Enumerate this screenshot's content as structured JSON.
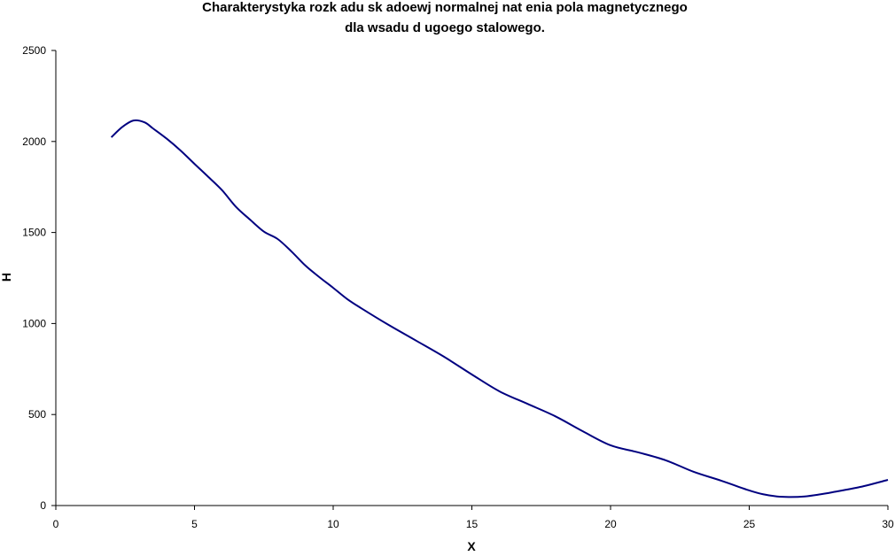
{
  "chart_data": {
    "type": "line",
    "title": [
      "Charakterystyka rozk adu sk adoewj normalnej nat    enia pola magnetycznego",
      "dla wsadu d ugoego stalowego."
    ],
    "xlabel": "X",
    "ylabel": "H",
    "xlim": [
      0,
      30
    ],
    "ylim": [
      0,
      2500
    ],
    "xticks": [
      0,
      5,
      10,
      15,
      20,
      25,
      30
    ],
    "yticks": [
      0,
      500,
      1000,
      1500,
      2000,
      2500
    ],
    "grid": false,
    "legend": "none",
    "series": [
      {
        "name": "H",
        "color": "#000080",
        "x": [
          2,
          2.4,
          2.8,
          3.2,
          3.5,
          4,
          4.5,
          5,
          5.5,
          6,
          6.5,
          7,
          7.5,
          8,
          8.5,
          9,
          9.5,
          10,
          10.5,
          11,
          12,
          13,
          14,
          15,
          16,
          17,
          18,
          19,
          20,
          21,
          22,
          23,
          24,
          25,
          25.5,
          26,
          26.5,
          27,
          27.5,
          28,
          29,
          30
        ],
        "y": [
          2023,
          2080,
          2115,
          2105,
          2072,
          2015,
          1950,
          1877,
          1805,
          1731,
          1640,
          1571,
          1505,
          1464,
          1395,
          1318,
          1255,
          1196,
          1135,
          1085,
          992,
          905,
          817,
          720,
          627,
          559,
          491,
          408,
          331,
          292,
          248,
          185,
          136,
          83,
          62,
          50,
          47,
          50,
          60,
          73,
          102,
          141
        ]
      }
    ]
  }
}
